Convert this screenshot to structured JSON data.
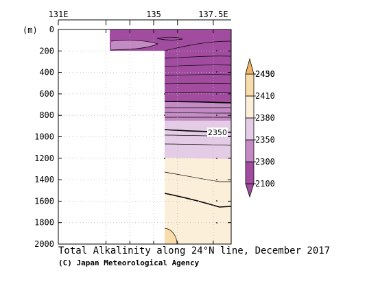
{
  "chart_data": {
    "type": "contour",
    "title": "Total Alkalinity along 24°N line, December 2017",
    "credit": "(C) Japan Meteorological Agency",
    "x_axis": {
      "ticks": [
        131,
        133,
        134,
        135,
        136,
        137.5
      ],
      "labels": [
        "131E",
        "",
        "",
        "135",
        "",
        "137.5E"
      ],
      "range": [
        131,
        138.25
      ]
    },
    "y_axis": {
      "unit": "(m)",
      "ticks": [
        0,
        200,
        400,
        600,
        800,
        1000,
        1200,
        1400,
        1600,
        1800,
        2000
      ],
      "labels": [
        "0",
        "200",
        "400",
        "600",
        "800",
        "1000",
        "1200",
        "1400",
        "1600",
        "1800",
        "2000"
      ],
      "range": [
        0,
        2000
      ],
      "inverted": true
    },
    "no_data_regions": [
      {
        "x": [
          131,
          133
        ],
        "depth": [
          0,
          2000
        ]
      },
      {
        "x": [
          133,
          135
        ],
        "depth": [
          200,
          2000
        ]
      }
    ],
    "contour_label": {
      "value": "2350",
      "x": 137.5,
      "depth": 965
    },
    "colorbar": {
      "levels": [
        "2100",
        "2300",
        "2350",
        "2380",
        "2410",
        "2430",
        "2450"
      ],
      "colors": [
        "#a24ca0",
        "#c48ac4",
        "#e4cce6",
        "#fbefd9",
        "#f8dcab",
        "#f2b566"
      ]
    }
  }
}
